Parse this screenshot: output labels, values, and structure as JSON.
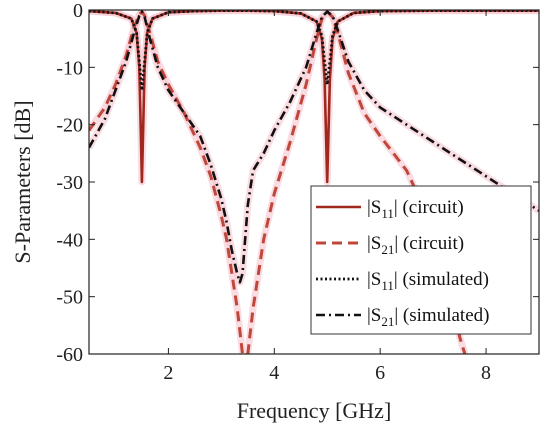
{
  "chart_data": {
    "type": "line",
    "xlabel": "Frequency [GHz]",
    "ylabel": "S-Parameters [dB]",
    "xlim": [
      0.5,
      9
    ],
    "ylim": [
      -60,
      0
    ],
    "x_ticks": [
      2,
      4,
      6,
      8
    ],
    "y_ticks": [
      0,
      -10,
      -20,
      -30,
      -40,
      -50,
      -60
    ],
    "grid": false,
    "legend_position": "bottom-right",
    "series": [
      {
        "name": "|S11| (circuit)",
        "legend_base": "|S",
        "legend_sub": "11",
        "legend_suffix": "| (circuit)",
        "color": "#a0291f",
        "style": "solid",
        "x": [
          0.5,
          1.0,
          1.3,
          1.4,
          1.45,
          1.48,
          1.5,
          1.52,
          1.55,
          1.6,
          1.7,
          2.0,
          2.5,
          3.0,
          3.5,
          4.0,
          4.5,
          4.8,
          4.9,
          4.95,
          5.0,
          5.05,
          5.1,
          5.2,
          5.5,
          6.0,
          7.0,
          8.0,
          9.0
        ],
        "y": [
          -0.2,
          -0.5,
          -1.5,
          -4,
          -10,
          -22,
          -30,
          -22,
          -10,
          -4,
          -1.5,
          -0.4,
          -0.2,
          -0.1,
          -0.1,
          -0.2,
          -0.6,
          -2,
          -5,
          -12,
          -30,
          -12,
          -5,
          -2,
          -0.5,
          -0.2,
          -0.1,
          -0.1,
          -0.1
        ]
      },
      {
        "name": "|S21| (circuit)",
        "legend_base": "|S",
        "legend_sub": "21",
        "legend_suffix": "| (circuit)",
        "color": "#c0473b",
        "style": "dashed",
        "x": [
          0.5,
          0.8,
          1.0,
          1.2,
          1.35,
          1.45,
          1.5,
          1.55,
          1.65,
          1.8,
          2.0,
          2.3,
          2.6,
          2.8,
          3.0,
          3.1,
          3.2,
          3.3,
          3.35,
          3.4,
          3.5,
          3.6,
          3.8,
          4.0,
          4.3,
          4.6,
          4.8,
          4.9,
          5.0,
          5.1,
          5.2,
          5.4,
          5.7,
          6.0,
          6.5,
          7.0,
          7.2,
          7.4,
          7.5,
          7.6
        ],
        "y": [
          -21,
          -17,
          -13,
          -8,
          -3,
          -0.8,
          -0.3,
          -1,
          -4,
          -9,
          -13,
          -18,
          -24,
          -29,
          -36,
          -40,
          -46,
          -52,
          -56,
          -60,
          -60,
          -52,
          -40,
          -32,
          -23,
          -13,
          -5,
          -1.5,
          -0.3,
          -1.2,
          -4,
          -11,
          -18,
          -22,
          -28,
          -38,
          -44,
          -51,
          -57,
          -60
        ]
      },
      {
        "name": "|S11| (simulated)",
        "legend_base": "|S",
        "legend_sub": "11",
        "legend_suffix": "| (simulated)",
        "color": "#111111",
        "style": "dotted",
        "x": [
          0.5,
          1.0,
          1.3,
          1.4,
          1.45,
          1.5,
          1.55,
          1.6,
          1.7,
          2.0,
          2.5,
          3.0,
          3.5,
          4.0,
          4.5,
          4.8,
          4.9,
          4.95,
          5.0,
          5.05,
          5.1,
          5.2,
          5.5,
          6.0,
          7.0,
          8.0,
          9.0
        ],
        "y": [
          -0.2,
          -0.5,
          -1.5,
          -4,
          -9,
          -14,
          -9,
          -4,
          -1.5,
          -0.4,
          -0.2,
          -0.1,
          -0.1,
          -0.2,
          -0.6,
          -2,
          -4.5,
          -9,
          -13,
          -9,
          -4.5,
          -2,
          -0.5,
          -0.2,
          -0.1,
          -0.1,
          -0.1
        ]
      },
      {
        "name": "|S21| (simulated)",
        "legend_base": "|S",
        "legend_sub": "21",
        "legend_suffix": "| (simulated)",
        "color": "#111111",
        "style": "dashdot",
        "x": [
          0.5,
          0.8,
          1.0,
          1.2,
          1.35,
          1.45,
          1.5,
          1.55,
          1.65,
          1.8,
          2.0,
          2.3,
          2.6,
          2.8,
          3.0,
          3.1,
          3.2,
          3.3,
          3.35,
          3.4,
          3.5,
          3.6,
          3.8,
          4.0,
          4.3,
          4.6,
          4.8,
          4.9,
          5.0,
          5.1,
          5.2,
          5.4,
          5.7,
          6.0,
          6.5,
          7.0,
          7.5,
          8.0,
          8.5,
          9.0
        ],
        "y": [
          -24,
          -19,
          -14,
          -9,
          -4,
          -1,
          -0.3,
          -1.2,
          -5,
          -10,
          -14,
          -18,
          -22,
          -27,
          -33,
          -37,
          -42,
          -46,
          -47.5,
          -46,
          -34,
          -28,
          -25,
          -21,
          -16,
          -10,
          -4,
          -1.2,
          -0.3,
          -1,
          -3.5,
          -9,
          -14,
          -17,
          -20,
          -23,
          -26,
          -29,
          -32,
          -35
        ]
      }
    ]
  }
}
